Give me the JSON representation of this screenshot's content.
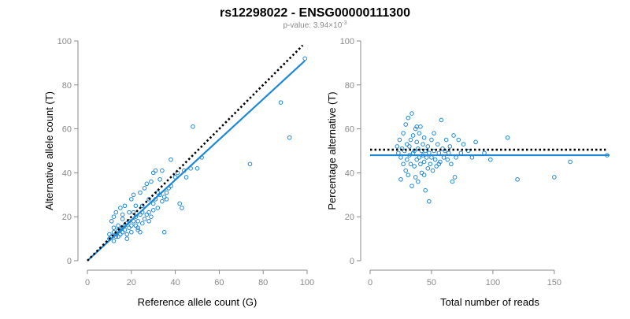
{
  "header": {
    "title": "rs12298022 - ENSG00000111300",
    "subtitle_prefix": "p-value: 3.94×10",
    "subtitle_exponent": "-3"
  },
  "chart_data": [
    {
      "type": "scatter",
      "xlabel": "Reference allele count (G)",
      "ylabel": "Alternative allele count (T)",
      "xlim": [
        0,
        100
      ],
      "ylim": [
        0,
        100
      ],
      "x_ticks": [
        0,
        20,
        40,
        60,
        80,
        100
      ],
      "y_ticks": [
        0,
        20,
        40,
        60,
        80,
        100
      ],
      "point_color": "#1f88d8",
      "fit_color": "#1f88d8",
      "reference_line": {
        "style": "dotted",
        "color": "#000000",
        "x": [
          0,
          98
        ],
        "y": [
          0,
          98
        ]
      },
      "fit_line": {
        "x": [
          0,
          99
        ],
        "y": [
          0,
          91
        ]
      },
      "points": [
        [
          10,
          10
        ],
        [
          10,
          12
        ],
        [
          11,
          11
        ],
        [
          12,
          13
        ],
        [
          12,
          15
        ],
        [
          13,
          12
        ],
        [
          13,
          11
        ],
        [
          14,
          14
        ],
        [
          14,
          16
        ],
        [
          15,
          12
        ],
        [
          15,
          14
        ],
        [
          16,
          15
        ],
        [
          16,
          13
        ],
        [
          17,
          14
        ],
        [
          17,
          16
        ],
        [
          18,
          12
        ],
        [
          18,
          17
        ],
        [
          19,
          15
        ],
        [
          20,
          16
        ],
        [
          20,
          13
        ],
        [
          21,
          18
        ],
        [
          22,
          16
        ],
        [
          22,
          20
        ],
        [
          23,
          18
        ],
        [
          23,
          15
        ],
        [
          24,
          21
        ],
        [
          25,
          17
        ],
        [
          25,
          22
        ],
        [
          26,
          19
        ],
        [
          27,
          21
        ],
        [
          28,
          18
        ],
        [
          28,
          22
        ],
        [
          29,
          20
        ],
        [
          30,
          23
        ],
        [
          30,
          26
        ],
        [
          31,
          28
        ],
        [
          32,
          24
        ],
        [
          33,
          30
        ],
        [
          34,
          27
        ],
        [
          35,
          29
        ],
        [
          36,
          31
        ],
        [
          37,
          33
        ],
        [
          38,
          34
        ],
        [
          40,
          38
        ],
        [
          41,
          40
        ],
        [
          42,
          26
        ],
        [
          43,
          24
        ],
        [
          44,
          41
        ],
        [
          45,
          38
        ],
        [
          47,
          42
        ],
        [
          48,
          61
        ],
        [
          50,
          42
        ],
        [
          52,
          47
        ],
        [
          11,
          18
        ],
        [
          12,
          20
        ],
        [
          13,
          22
        ],
        [
          15,
          24
        ],
        [
          16,
          21
        ],
        [
          17,
          25
        ],
        [
          19,
          22
        ],
        [
          20,
          28
        ],
        [
          21,
          30
        ],
        [
          22,
          25
        ],
        [
          24,
          31
        ],
        [
          26,
          33
        ],
        [
          27,
          35
        ],
        [
          29,
          36
        ],
        [
          30,
          40
        ],
        [
          31,
          41
        ],
        [
          33,
          37
        ],
        [
          35,
          13
        ],
        [
          36,
          28
        ],
        [
          38,
          46
        ],
        [
          34,
          41
        ],
        [
          23,
          14
        ],
        [
          24,
          13
        ],
        [
          18,
          10
        ],
        [
          14,
          11
        ],
        [
          12,
          9
        ],
        [
          16,
          19
        ],
        [
          19,
          18
        ],
        [
          21,
          22
        ],
        [
          25,
          25
        ],
        [
          28,
          28
        ],
        [
          32,
          31
        ],
        [
          74,
          44
        ],
        [
          88,
          72
        ],
        [
          92,
          56
        ],
        [
          99,
          92
        ]
      ]
    },
    {
      "type": "scatter",
      "xlabel": "Total number of reads",
      "ylabel": "Percentage alternative (T)",
      "xlim": [
        0,
        195
      ],
      "ylim": [
        0,
        100
      ],
      "x_ticks": [
        0,
        50,
        100,
        150
      ],
      "y_ticks": [
        0,
        20,
        40,
        60,
        80,
        100
      ],
      "point_color": "#1f88d8",
      "fit_color": "#1f88d8",
      "reference_line": {
        "style": "dotted",
        "color": "#000000",
        "x": [
          0,
          192
        ],
        "y": [
          50.5,
          50.5
        ]
      },
      "fit_line": {
        "x": [
          0,
          195
        ],
        "y": [
          48,
          48
        ]
      },
      "points": [
        [
          22,
          52
        ],
        [
          23,
          49
        ],
        [
          24,
          55
        ],
        [
          25,
          47
        ],
        [
          26,
          51
        ],
        [
          27,
          44
        ],
        [
          27,
          58
        ],
        [
          28,
          50
        ],
        [
          29,
          62
        ],
        [
          29,
          41
        ],
        [
          30,
          53
        ],
        [
          30,
          46
        ],
        [
          31,
          65
        ],
        [
          31,
          39
        ],
        [
          32,
          48
        ],
        [
          32,
          52
        ],
        [
          33,
          55
        ],
        [
          33,
          44
        ],
        [
          34,
          67
        ],
        [
          34,
          34
        ],
        [
          35,
          49
        ],
        [
          35,
          57
        ],
        [
          36,
          43
        ],
        [
          36,
          50
        ],
        [
          37,
          60
        ],
        [
          37,
          38
        ],
        [
          38,
          46
        ],
        [
          38,
          54
        ],
        [
          39,
          51
        ],
        [
          39,
          36
        ],
        [
          40,
          58
        ],
        [
          40,
          47
        ],
        [
          41,
          44
        ],
        [
          41,
          61
        ],
        [
          42,
          50
        ],
        [
          42,
          40
        ],
        [
          43,
          53
        ],
        [
          43,
          48
        ],
        [
          44,
          45
        ],
        [
          44,
          56
        ],
        [
          45,
          32
        ],
        [
          45,
          50
        ],
        [
          46,
          47
        ],
        [
          47,
          52
        ],
        [
          47,
          42
        ],
        [
          48,
          49
        ],
        [
          48,
          27
        ],
        [
          49,
          44
        ],
        [
          50,
          55
        ],
        [
          50,
          47
        ],
        [
          51,
          41
        ],
        [
          52,
          58
        ],
        [
          52,
          50
        ],
        [
          53,
          46
        ],
        [
          54,
          43
        ],
        [
          55,
          53
        ],
        [
          56,
          49
        ],
        [
          57,
          45
        ],
        [
          58,
          64
        ],
        [
          59,
          51
        ],
        [
          60,
          47
        ],
        [
          61,
          50
        ],
        [
          62,
          55
        ],
        [
          63,
          46
        ],
        [
          64,
          49
        ],
        [
          65,
          52
        ],
        [
          66,
          44
        ],
        [
          67,
          36
        ],
        [
          68,
          57
        ],
        [
          69,
          38
        ],
        [
          70,
          47
        ],
        [
          72,
          55
        ],
        [
          74,
          49
        ],
        [
          76,
          53
        ],
        [
          80,
          50
        ],
        [
          83,
          47
        ],
        [
          86,
          54
        ],
        [
          93,
          49
        ],
        [
          98,
          46
        ],
        [
          112,
          56
        ],
        [
          120,
          37
        ],
        [
          150,
          38
        ],
        [
          163,
          45
        ],
        [
          193,
          48
        ],
        [
          25,
          37
        ],
        [
          38,
          61
        ],
        [
          44,
          39
        ],
        [
          56,
          44
        ]
      ]
    }
  ]
}
